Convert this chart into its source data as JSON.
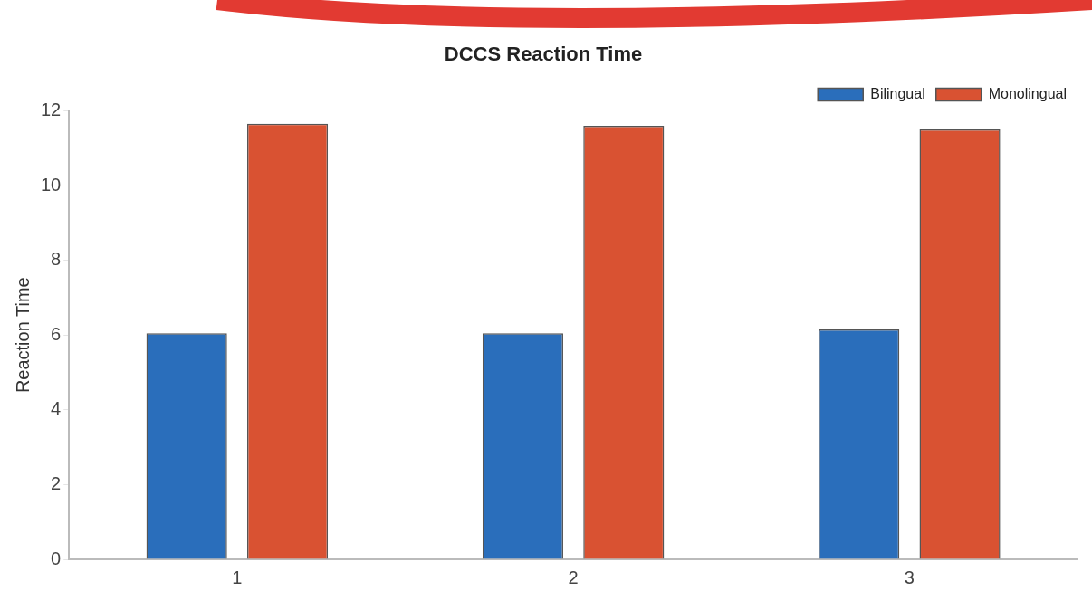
{
  "chart_data": {
    "type": "bar",
    "title": "DCCS Reaction Time",
    "ylabel": "Reaction Time",
    "categories": [
      "1",
      "2",
      "3"
    ],
    "series": [
      {
        "name": "Bilingual",
        "color": "#2a6ebb",
        "values": [
          6.05,
          6.05,
          6.15
        ]
      },
      {
        "name": "Monolingual",
        "color": "#d95232",
        "values": [
          11.65,
          11.6,
          11.5
        ]
      }
    ],
    "ylim": [
      0,
      12
    ],
    "yticks": [
      0,
      2,
      4,
      6,
      8,
      10,
      12
    ],
    "grid": false,
    "legend": "top right"
  }
}
